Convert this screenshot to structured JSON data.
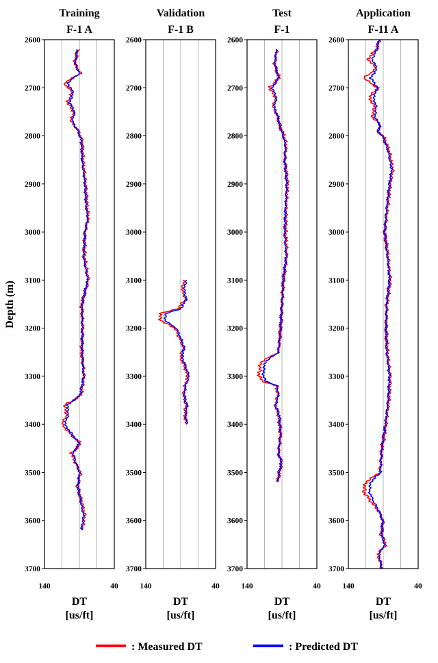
{
  "colors": {
    "measured": "#ff0000",
    "predicted": "#0000ff",
    "grid": "#b4b4b4",
    "frame": "#000000"
  },
  "y_axis_label": "Depth (m)",
  "legend": {
    "measured": ": Measured DT",
    "predicted": ": Predicted DT"
  },
  "chart_data": [
    {
      "type": "line",
      "title": "Training",
      "subtitle": "F-1 A",
      "xlabel": "DT",
      "xunit": "[us/ft]",
      "xlim": [
        140,
        40
      ],
      "xticks": [
        140,
        40
      ],
      "ylim": [
        3700,
        2600
      ],
      "yticks": [
        2600,
        2700,
        2800,
        2900,
        3000,
        3100,
        3200,
        3300,
        3400,
        3500,
        3600,
        3700
      ],
      "grid": true,
      "depth_range": [
        2620,
        3620
      ],
      "series": [
        {
          "name": "Measured DT",
          "color": "#ff0000",
          "depth": [
            2620,
            2650,
            2670,
            2690,
            2710,
            2730,
            2750,
            2770,
            2790,
            2810,
            2850,
            2900,
            2950,
            2970,
            3000,
            3050,
            3100,
            3150,
            3200,
            3250,
            3300,
            3340,
            3360,
            3380,
            3400,
            3420,
            3440,
            3460,
            3480,
            3500,
            3530,
            3560,
            3590,
            3620
          ],
          "dt": [
            92,
            97,
            88,
            112,
            100,
            107,
            98,
            102,
            91,
            86,
            85,
            81,
            79,
            77,
            82,
            83,
            77,
            87,
            85,
            87,
            83,
            88,
            111,
            108,
            115,
            103,
            88,
            101,
            96,
            88,
            93,
            87,
            82,
            86
          ]
        },
        {
          "name": "Predicted DT",
          "color": "#0000ff",
          "depth": [
            2620,
            2650,
            2670,
            2690,
            2710,
            2730,
            2750,
            2770,
            2790,
            2810,
            2850,
            2900,
            2950,
            2970,
            3000,
            3050,
            3100,
            3150,
            3200,
            3250,
            3300,
            3340,
            3360,
            3380,
            3400,
            3420,
            3440,
            3460,
            3480,
            3500,
            3530,
            3560,
            3590,
            3620
          ],
          "dt": [
            93,
            96,
            90,
            107,
            99,
            104,
            97,
            100,
            92,
            87,
            86,
            82,
            80,
            78,
            82,
            84,
            78,
            86,
            86,
            86,
            84,
            89,
            107,
            106,
            111,
            101,
            90,
            99,
            95,
            90,
            92,
            88,
            84,
            87
          ]
        }
      ]
    },
    {
      "type": "line",
      "title": "Validation",
      "subtitle": "F-1 B",
      "xlabel": "DT",
      "xunit": "[us/ft]",
      "xlim": [
        140,
        40
      ],
      "xticks": [
        140,
        40
      ],
      "ylim": [
        3700,
        2600
      ],
      "yticks": [
        2600,
        2700,
        2800,
        2900,
        3000,
        3100,
        3200,
        3300,
        3400,
        3500,
        3600,
        3700
      ],
      "grid": true,
      "depth_range": [
        3100,
        3400
      ],
      "series": [
        {
          "name": "Measured DT",
          "color": "#ff0000",
          "depth": [
            3100,
            3120,
            3140,
            3160,
            3170,
            3185,
            3200,
            3220,
            3240,
            3260,
            3280,
            3300,
            3320,
            3340,
            3360,
            3380,
            3400
          ],
          "dt": [
            85,
            88,
            83,
            95,
            120,
            118,
            98,
            92,
            86,
            90,
            84,
            80,
            84,
            86,
            82,
            84,
            82
          ]
        },
        {
          "name": "Predicted DT",
          "color": "#0000ff",
          "depth": [
            3100,
            3120,
            3140,
            3160,
            3170,
            3185,
            3200,
            3220,
            3240,
            3260,
            3280,
            3300,
            3320,
            3340,
            3360,
            3380,
            3400
          ],
          "dt": [
            82,
            85,
            82,
            90,
            112,
            112,
            96,
            90,
            85,
            88,
            83,
            78,
            83,
            85,
            81,
            83,
            81
          ]
        }
      ]
    },
    {
      "type": "line",
      "title": "Test",
      "subtitle": "F-1",
      "xlabel": "DT",
      "xunit": "[us/ft]",
      "xlim": [
        140,
        40
      ],
      "xticks": [
        140,
        40
      ],
      "ylim": [
        3700,
        2600
      ],
      "yticks": [
        2600,
        2700,
        2800,
        2900,
        3000,
        3100,
        3200,
        3300,
        3400,
        3500,
        3600,
        3700
      ],
      "grid": true,
      "depth_range": [
        2620,
        3520
      ],
      "series": [
        {
          "name": "Measured DT",
          "color": "#ff0000",
          "depth": [
            2620,
            2650,
            2680,
            2700,
            2720,
            2740,
            2760,
            2780,
            2800,
            2820,
            2850,
            2900,
            2950,
            3000,
            3050,
            3100,
            3150,
            3200,
            3250,
            3270,
            3285,
            3300,
            3310,
            3320,
            3340,
            3360,
            3380,
            3420,
            3460,
            3480,
            3500,
            3520
          ],
          "dt": [
            97,
            101,
            94,
            108,
            99,
            103,
            96,
            93,
            87,
            84,
            86,
            82,
            84,
            85,
            83,
            88,
            90,
            92,
            95,
            120,
            122,
            123,
            118,
            98,
            96,
            100,
            95,
            92,
            95,
            90,
            94,
            96
          ]
        },
        {
          "name": "Predicted DT",
          "color": "#0000ff",
          "depth": [
            2620,
            2650,
            2680,
            2700,
            2720,
            2740,
            2760,
            2780,
            2800,
            2820,
            2850,
            2900,
            2950,
            3000,
            3050,
            3100,
            3150,
            3200,
            3250,
            3270,
            3285,
            3300,
            3310,
            3320,
            3340,
            3360,
            3380,
            3420,
            3460,
            3480,
            3500,
            3520
          ],
          "dt": [
            98,
            100,
            95,
            104,
            98,
            101,
            96,
            93,
            88,
            85,
            86,
            83,
            85,
            86,
            84,
            88,
            90,
            92,
            95,
            114,
            116,
            117,
            113,
            97,
            95,
            99,
            94,
            92,
            95,
            91,
            94,
            96
          ]
        }
      ]
    },
    {
      "type": "line",
      "title": "Application",
      "subtitle": "F-11 A",
      "xlabel": "DT",
      "xunit": "[us/ft]",
      "xlim": [
        140,
        40
      ],
      "xticks": [
        140,
        40
      ],
      "ylim": [
        3700,
        2600
      ],
      "yticks": [
        2600,
        2700,
        2800,
        2900,
        3000,
        3100,
        3200,
        3300,
        3400,
        3500,
        3600,
        3700
      ],
      "grid": true,
      "depth_range": [
        2600,
        3700
      ],
      "series": [
        {
          "name": "Measured DT",
          "color": "#ff0000",
          "depth": [
            2600,
            2620,
            2640,
            2660,
            2680,
            2700,
            2720,
            2740,
            2760,
            2780,
            2790,
            2800,
            2830,
            2870,
            2900,
            2950,
            3000,
            3050,
            3100,
            3150,
            3200,
            3250,
            3300,
            3350,
            3400,
            3450,
            3500,
            3520,
            3540,
            3560,
            3580,
            3600,
            3630,
            3650,
            3670,
            3700
          ],
          "dt": [
            95,
            100,
            112,
            100,
            118,
            98,
            110,
            102,
            106,
            93,
            100,
            90,
            82,
            76,
            80,
            84,
            88,
            83,
            80,
            85,
            86,
            84,
            80,
            82,
            86,
            92,
            95,
            115,
            118,
            108,
            97,
            90,
            93,
            86,
            98,
            92
          ]
        },
        {
          "name": "Predicted DT",
          "color": "#0000ff",
          "depth": [
            2600,
            2620,
            2640,
            2660,
            2680,
            2700,
            2720,
            2740,
            2760,
            2780,
            2790,
            2800,
            2830,
            2870,
            2900,
            2950,
            3000,
            3050,
            3100,
            3150,
            3200,
            3250,
            3300,
            3350,
            3400,
            3450,
            3500,
            3520,
            3540,
            3560,
            3580,
            3600,
            3630,
            3650,
            3670,
            3700
          ],
          "dt": [
            96,
            99,
            106,
            99,
            108,
            98,
            104,
            100,
            102,
            94,
            98,
            91,
            83,
            78,
            81,
            85,
            88,
            84,
            81,
            85,
            86,
            85,
            81,
            83,
            87,
            92,
            94,
            108,
            110,
            104,
            96,
            91,
            92,
            88,
            96,
            92
          ]
        }
      ]
    }
  ]
}
